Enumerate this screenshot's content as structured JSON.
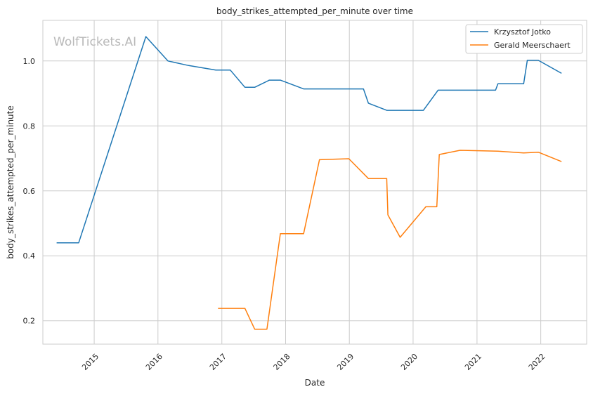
{
  "chart_data": {
    "type": "line",
    "title": "body_strikes_attempted_per_minute over time",
    "xlabel": "Date",
    "ylabel": "body_strikes_attempted_per_minute",
    "watermark": "WolfTickets.AI",
    "x_ticks": [
      "2015",
      "2016",
      "2017",
      "2018",
      "2019",
      "2020",
      "2021",
      "2022"
    ],
    "y_ticks": [
      "0.2",
      "0.4",
      "0.6",
      "0.8",
      "1.0"
    ],
    "xlim": [
      "2014-03-13",
      "2022-09-21"
    ],
    "ylim": [
      0.128,
      1.125
    ],
    "grid": true,
    "legend_position": "top-right",
    "series": [
      {
        "name": "Krzysztof Jotko",
        "color": "#1f77b4",
        "points": [
          [
            "2014-05-31",
            0.44
          ],
          [
            "2014-10-04",
            0.44
          ],
          [
            "2015-10-24",
            1.075
          ],
          [
            "2016-02-27",
            1.0
          ],
          [
            "2016-06-25",
            0.986
          ],
          [
            "2016-11-27",
            0.972
          ],
          [
            "2017-02-18",
            0.972
          ],
          [
            "2017-05-13",
            0.919
          ],
          [
            "2017-07-08",
            0.919
          ],
          [
            "2017-09-30",
            0.941
          ],
          [
            "2017-12-02",
            0.941
          ],
          [
            "2018-04-14",
            0.914
          ],
          [
            "2019-03-23",
            0.914
          ],
          [
            "2019-04-20",
            0.87
          ],
          [
            "2019-08-03",
            0.848
          ],
          [
            "2020-02-29",
            0.848
          ],
          [
            "2020-05-23",
            0.91
          ],
          [
            "2021-04-17",
            0.91
          ],
          [
            "2021-05-01",
            0.93
          ],
          [
            "2021-09-25",
            0.93
          ],
          [
            "2021-10-16",
            1.002
          ],
          [
            "2021-12-18",
            1.002
          ],
          [
            "2022-04-30",
            0.962
          ]
        ]
      },
      {
        "name": "Gerald Meerschaert",
        "color": "#ff7f0e",
        "points": [
          [
            "2016-12-10",
            0.238
          ],
          [
            "2017-05-13",
            0.238
          ],
          [
            "2017-07-08",
            0.174
          ],
          [
            "2017-09-16",
            0.174
          ],
          [
            "2017-12-02",
            0.468
          ],
          [
            "2018-04-14",
            0.468
          ],
          [
            "2018-07-14",
            0.696
          ],
          [
            "2018-12-29",
            0.699
          ],
          [
            "2019-04-20",
            0.638
          ],
          [
            "2019-08-03",
            0.638
          ],
          [
            "2019-08-10",
            0.526
          ],
          [
            "2019-10-19",
            0.457
          ],
          [
            "2020-03-14",
            0.551
          ],
          [
            "2020-05-16",
            0.551
          ],
          [
            "2020-05-30",
            0.712
          ],
          [
            "2020-09-26",
            0.725
          ],
          [
            "2021-05-01",
            0.722
          ],
          [
            "2021-09-25",
            0.717
          ],
          [
            "2021-12-18",
            0.719
          ],
          [
            "2022-04-30",
            0.69
          ]
        ]
      }
    ]
  }
}
